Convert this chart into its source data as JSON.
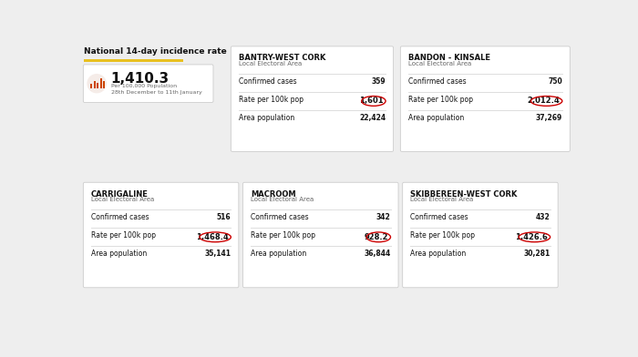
{
  "bg_color": "#eeeeee",
  "card_color": "#ffffff",
  "national_title": "National 14-day incidence rate",
  "national_value": "1,410.3",
  "national_sub1": "Per 100,000 Population",
  "national_sub2": "28th December to 11th January",
  "yellow_bar_color": "#e8c020",
  "areas": [
    {
      "name": "BANTRY-WEST CORK",
      "sub": "Local Electoral Area",
      "confirmed": "359",
      "rate": "1,601",
      "population": "22,424"
    },
    {
      "name": "BANDON - KINSALE",
      "sub": "Local Electoral Area",
      "confirmed": "750",
      "rate": "2,012.4",
      "population": "37,269"
    },
    {
      "name": "CARRIGALINE",
      "sub": "Local Electoral Area",
      "confirmed": "516",
      "rate": "1,468.4",
      "population": "35,141"
    },
    {
      "name": "MACROOM",
      "sub": "Local Electoral Area",
      "confirmed": "342",
      "rate": "928.2",
      "population": "36,844"
    },
    {
      "name": "SKIBBEREEN-WEST CORK",
      "sub": "Local Electoral Area",
      "confirmed": "432",
      "rate": "1,426.6",
      "population": "30,281"
    }
  ],
  "label_confirmed": "Confirmed cases",
  "label_rate": "Rate per 100k pop",
  "label_population": "Area population",
  "circle_color": "#cc0000",
  "icon_color": "#cc4400",
  "icon_bg": "#f5ece8",
  "divider_color": "#dddddd",
  "text_dark": "#111111",
  "text_gray": "#666666",
  "card_shadow": "#cccccc"
}
